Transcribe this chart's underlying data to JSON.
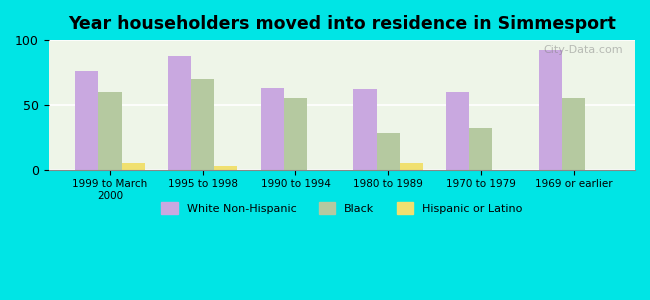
{
  "title": "Year householders moved into residence in Simmesport",
  "categories": [
    "1999 to March\n2000",
    "1995 to 1998",
    "1990 to 1994",
    "1980 to 1989",
    "1970 to 1979",
    "1969 or earlier"
  ],
  "white": [
    76,
    88,
    63,
    62,
    60,
    92
  ],
  "black": [
    60,
    70,
    55,
    28,
    32,
    55
  ],
  "hispanic": [
    5,
    3,
    0,
    5,
    0,
    0
  ],
  "white_color": "#c9a8e0",
  "black_color": "#b5c9a0",
  "hispanic_color": "#f0e070",
  "bg_color": "#00e5e5",
  "plot_bg_color": "#f0f5e8",
  "ylim": [
    0,
    100
  ],
  "yticks": [
    0,
    50,
    100
  ],
  "bar_width": 0.25,
  "legend_labels": [
    "White Non-Hispanic",
    "Black",
    "Hispanic or Latino"
  ],
  "watermark": "City-Data.com"
}
